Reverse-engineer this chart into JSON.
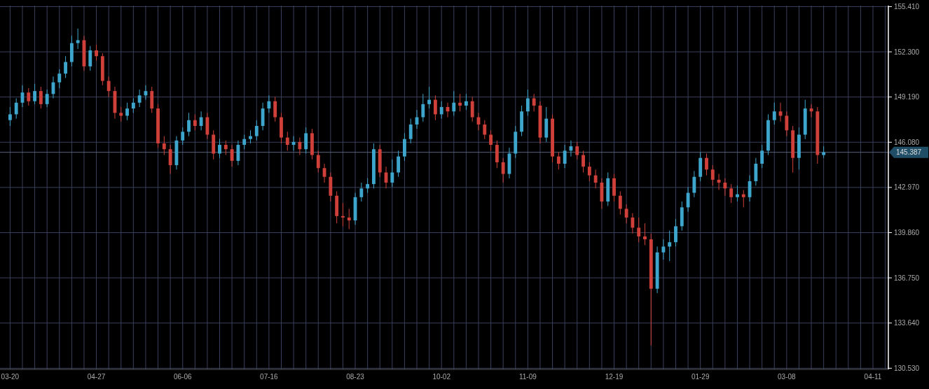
{
  "chart_data": {
    "type": "candlestick",
    "categories": [
      "03-20",
      null,
      null,
      null,
      null,
      null,
      null,
      null,
      null,
      null,
      null,
      null,
      null,
      null,
      "04-27",
      null,
      null,
      null,
      null,
      null,
      null,
      null,
      null,
      null,
      null,
      null,
      null,
      null,
      "06-06",
      null,
      null,
      null,
      null,
      null,
      null,
      null,
      null,
      null,
      null,
      null,
      null,
      null,
      "07-16",
      null,
      null,
      null,
      null,
      null,
      null,
      null,
      null,
      null,
      null,
      null,
      null,
      null,
      "08-23",
      null,
      null,
      null,
      null,
      null,
      null,
      null,
      null,
      null,
      null,
      null,
      null,
      null,
      "10-02",
      null,
      null,
      null,
      null,
      null,
      null,
      null,
      null,
      null,
      null,
      null,
      null,
      null,
      "11-09",
      null,
      null,
      null,
      null,
      null,
      null,
      null,
      null,
      null,
      null,
      null,
      null,
      null,
      "12-19",
      null,
      null,
      null,
      null,
      null,
      null,
      null,
      null,
      null,
      null,
      null,
      null,
      null,
      "01-29",
      null,
      null,
      null,
      null,
      null,
      null,
      null,
      null,
      null,
      null,
      null,
      null,
      null,
      "03-08",
      null,
      null,
      null,
      null,
      null,
      null,
      null,
      null,
      null,
      null,
      null,
      null,
      null,
      "04-11",
      null,
      null
    ],
    "ohlc": [
      [
        147.6,
        148.5,
        147.2,
        148.0
      ],
      [
        148.0,
        149.1,
        147.7,
        148.8
      ],
      [
        148.8,
        150.0,
        148.5,
        149.5
      ],
      [
        149.5,
        149.8,
        148.6,
        148.9
      ],
      [
        148.9,
        150.1,
        148.7,
        149.6
      ],
      [
        149.6,
        149.9,
        148.4,
        148.7
      ],
      [
        148.7,
        149.7,
        148.5,
        149.4
      ],
      [
        149.4,
        150.6,
        149.1,
        150.2
      ],
      [
        150.2,
        151.1,
        149.8,
        150.8
      ],
      [
        150.8,
        152.0,
        150.5,
        151.6
      ],
      [
        151.6,
        153.4,
        151.3,
        152.9
      ],
      [
        152.9,
        153.9,
        152.5,
        153.1
      ],
      [
        153.1,
        153.4,
        151.0,
        151.3
      ],
      [
        151.3,
        152.7,
        151.0,
        152.4
      ],
      [
        152.4,
        152.8,
        151.7,
        152.0
      ],
      [
        152.0,
        152.2,
        150.0,
        150.3
      ],
      [
        150.3,
        150.6,
        149.2,
        149.6
      ],
      [
        149.6,
        149.9,
        147.7,
        148.1
      ],
      [
        148.1,
        148.5,
        147.5,
        147.9
      ],
      [
        147.9,
        148.8,
        147.6,
        148.4
      ],
      [
        148.4,
        149.1,
        148.1,
        148.8
      ],
      [
        148.8,
        149.7,
        148.5,
        149.3
      ],
      [
        149.3,
        150.0,
        149.0,
        149.6
      ],
      [
        149.6,
        149.9,
        148.1,
        148.4
      ],
      [
        148.4,
        148.7,
        145.7,
        146.0
      ],
      [
        146.0,
        146.5,
        145.2,
        145.6
      ],
      [
        145.6,
        145.9,
        143.9,
        144.5
      ],
      [
        144.5,
        146.5,
        144.2,
        146.2
      ],
      [
        146.2,
        147.1,
        145.9,
        146.8
      ],
      [
        146.8,
        148.1,
        146.5,
        147.6
      ],
      [
        147.6,
        148.0,
        146.9,
        147.2
      ],
      [
        147.2,
        148.2,
        146.9,
        147.8
      ],
      [
        147.8,
        148.1,
        146.3,
        146.6
      ],
      [
        146.6,
        146.9,
        144.9,
        145.3
      ],
      [
        145.3,
        146.3,
        145.0,
        145.9
      ],
      [
        145.9,
        146.2,
        145.2,
        145.6
      ],
      [
        145.6,
        145.9,
        144.4,
        144.8
      ],
      [
        144.8,
        146.2,
        144.5,
        145.9
      ],
      [
        145.9,
        146.6,
        145.6,
        146.3
      ],
      [
        146.3,
        146.9,
        146.0,
        146.5
      ],
      [
        146.5,
        147.6,
        146.2,
        147.2
      ],
      [
        147.2,
        148.8,
        146.9,
        148.4
      ],
      [
        148.4,
        149.3,
        148.1,
        148.9
      ],
      [
        148.9,
        149.2,
        147.5,
        147.8
      ],
      [
        147.8,
        148.1,
        146.0,
        146.4
      ],
      [
        146.4,
        146.8,
        145.5,
        145.9
      ],
      [
        145.9,
        146.5,
        145.5,
        146.1
      ],
      [
        146.1,
        146.4,
        145.2,
        145.6
      ],
      [
        145.6,
        147.1,
        145.3,
        146.7
      ],
      [
        146.7,
        147.0,
        144.9,
        145.2
      ],
      [
        145.2,
        145.5,
        144.0,
        144.3
      ],
      [
        144.3,
        144.6,
        143.3,
        143.7
      ],
      [
        143.7,
        144.0,
        142.0,
        142.4
      ],
      [
        142.4,
        142.7,
        140.5,
        141.0
      ],
      [
        141.0,
        141.9,
        140.3,
        140.9
      ],
      [
        140.9,
        141.5,
        140.1,
        140.7
      ],
      [
        140.7,
        142.6,
        140.4,
        142.3
      ],
      [
        142.3,
        143.3,
        142.0,
        142.9
      ],
      [
        142.9,
        143.6,
        142.6,
        143.2
      ],
      [
        143.2,
        146.0,
        142.9,
        145.6
      ],
      [
        145.6,
        145.9,
        143.7,
        144.0
      ],
      [
        144.0,
        144.4,
        142.9,
        143.3
      ],
      [
        143.3,
        144.9,
        143.0,
        144.0
      ],
      [
        144.0,
        145.5,
        143.7,
        145.1
      ],
      [
        145.1,
        146.7,
        144.8,
        146.3
      ],
      [
        146.3,
        147.7,
        146.0,
        147.3
      ],
      [
        147.3,
        148.3,
        147.0,
        147.8
      ],
      [
        147.8,
        149.4,
        147.5,
        148.7
      ],
      [
        148.7,
        149.9,
        148.4,
        149.0
      ],
      [
        149.0,
        149.3,
        147.6,
        148.0
      ],
      [
        148.0,
        148.9,
        147.7,
        148.5
      ],
      [
        148.5,
        148.8,
        147.8,
        148.2
      ],
      [
        148.2,
        149.6,
        147.9,
        148.8
      ],
      [
        148.8,
        149.4,
        148.2,
        148.6
      ],
      [
        148.6,
        149.4,
        148.3,
        148.9
      ],
      [
        148.9,
        149.2,
        147.5,
        147.8
      ],
      [
        147.8,
        148.1,
        146.9,
        147.3
      ],
      [
        147.3,
        147.6,
        146.3,
        146.6
      ],
      [
        146.6,
        146.9,
        145.5,
        145.9
      ],
      [
        145.9,
        146.2,
        144.3,
        144.7
      ],
      [
        144.7,
        145.0,
        143.3,
        143.9
      ],
      [
        143.9,
        145.7,
        143.6,
        145.3
      ],
      [
        145.3,
        147.2,
        145.0,
        146.8
      ],
      [
        146.8,
        148.6,
        146.5,
        148.2
      ],
      [
        148.2,
        149.7,
        147.9,
        149.1
      ],
      [
        149.1,
        149.4,
        148.2,
        148.6
      ],
      [
        148.6,
        148.9,
        146.0,
        146.4
      ],
      [
        146.4,
        148.5,
        146.1,
        147.7
      ],
      [
        147.7,
        148.0,
        144.7,
        145.1
      ],
      [
        145.1,
        145.4,
        144.2,
        144.6
      ],
      [
        144.6,
        145.9,
        144.3,
        145.5
      ],
      [
        145.5,
        146.2,
        145.1,
        145.8
      ],
      [
        145.8,
        146.1,
        144.9,
        145.2
      ],
      [
        145.2,
        145.5,
        144.0,
        144.4
      ],
      [
        144.4,
        144.7,
        143.4,
        143.8
      ],
      [
        143.8,
        144.2,
        142.9,
        143.3
      ],
      [
        143.3,
        143.6,
        141.5,
        142.0
      ],
      [
        142.0,
        144.0,
        141.7,
        143.6
      ],
      [
        143.6,
        143.9,
        142.0,
        142.4
      ],
      [
        142.4,
        142.7,
        141.1,
        141.5
      ],
      [
        141.5,
        141.8,
        140.5,
        140.9
      ],
      [
        140.9,
        141.2,
        139.8,
        140.2
      ],
      [
        140.2,
        140.9,
        139.2,
        139.6
      ],
      [
        139.6,
        140.5,
        139.0,
        139.4
      ],
      [
        139.4,
        139.8,
        132.1,
        136.0
      ],
      [
        136.0,
        138.9,
        135.7,
        138.5
      ],
      [
        138.5,
        139.4,
        138.0,
        138.9
      ],
      [
        138.9,
        140.0,
        137.9,
        139.2
      ],
      [
        139.2,
        140.8,
        138.9,
        140.3
      ],
      [
        140.3,
        142.0,
        140.0,
        141.6
      ],
      [
        141.6,
        143.0,
        141.3,
        142.6
      ],
      [
        142.6,
        144.1,
        142.3,
        143.7
      ],
      [
        143.7,
        145.4,
        143.4,
        145.0
      ],
      [
        145.0,
        145.3,
        143.8,
        144.2
      ],
      [
        144.2,
        144.5,
        143.1,
        143.5
      ],
      [
        143.5,
        143.9,
        142.8,
        143.3
      ],
      [
        143.3,
        143.6,
        142.4,
        142.9
      ],
      [
        142.9,
        143.2,
        141.9,
        142.3
      ],
      [
        142.3,
        143.1,
        142.0,
        142.5
      ],
      [
        142.5,
        142.8,
        141.6,
        142.3
      ],
      [
        142.3,
        143.8,
        142.0,
        143.4
      ],
      [
        143.4,
        145.0,
        143.1,
        144.6
      ],
      [
        144.6,
        145.9,
        144.3,
        145.5
      ],
      [
        145.5,
        148.0,
        145.2,
        147.6
      ],
      [
        147.6,
        148.8,
        147.3,
        148.2
      ],
      [
        148.2,
        148.8,
        147.5,
        147.9
      ],
      [
        147.9,
        148.2,
        146.5,
        146.9
      ],
      [
        146.9,
        147.2,
        144.0,
        145.0
      ],
      [
        145.0,
        147.1,
        144.2,
        146.6
      ],
      [
        146.6,
        149.0,
        146.3,
        148.4
      ],
      [
        148.4,
        148.7,
        147.8,
        148.2
      ],
      [
        148.2,
        148.5,
        144.6,
        145.2
      ],
      [
        145.2,
        145.8,
        145.0,
        145.387
      ],
      null,
      null,
      null,
      null,
      null,
      null,
      null,
      null,
      null,
      null
    ],
    "ylim": [
      130.45,
      155.48
    ],
    "yticks": [
      {
        "value": 130.53,
        "label": "130.530"
      },
      {
        "value": 133.64,
        "label": "133.640"
      },
      {
        "value": 136.75,
        "label": "136.750"
      },
      {
        "value": 139.86,
        "label": "139.860"
      },
      {
        "value": 142.97,
        "label": "142.970"
      },
      {
        "value": 146.08,
        "label": "146.080"
      },
      {
        "value": 149.19,
        "label": "149.190"
      },
      {
        "value": 152.3,
        "label": "152.300"
      },
      {
        "value": 155.41,
        "label": "155.410"
      }
    ],
    "ref_lines": [
      {
        "axis": "y",
        "value": 145.387,
        "label": "145.387",
        "color": "#56647e"
      }
    ],
    "grid": true
  }
}
